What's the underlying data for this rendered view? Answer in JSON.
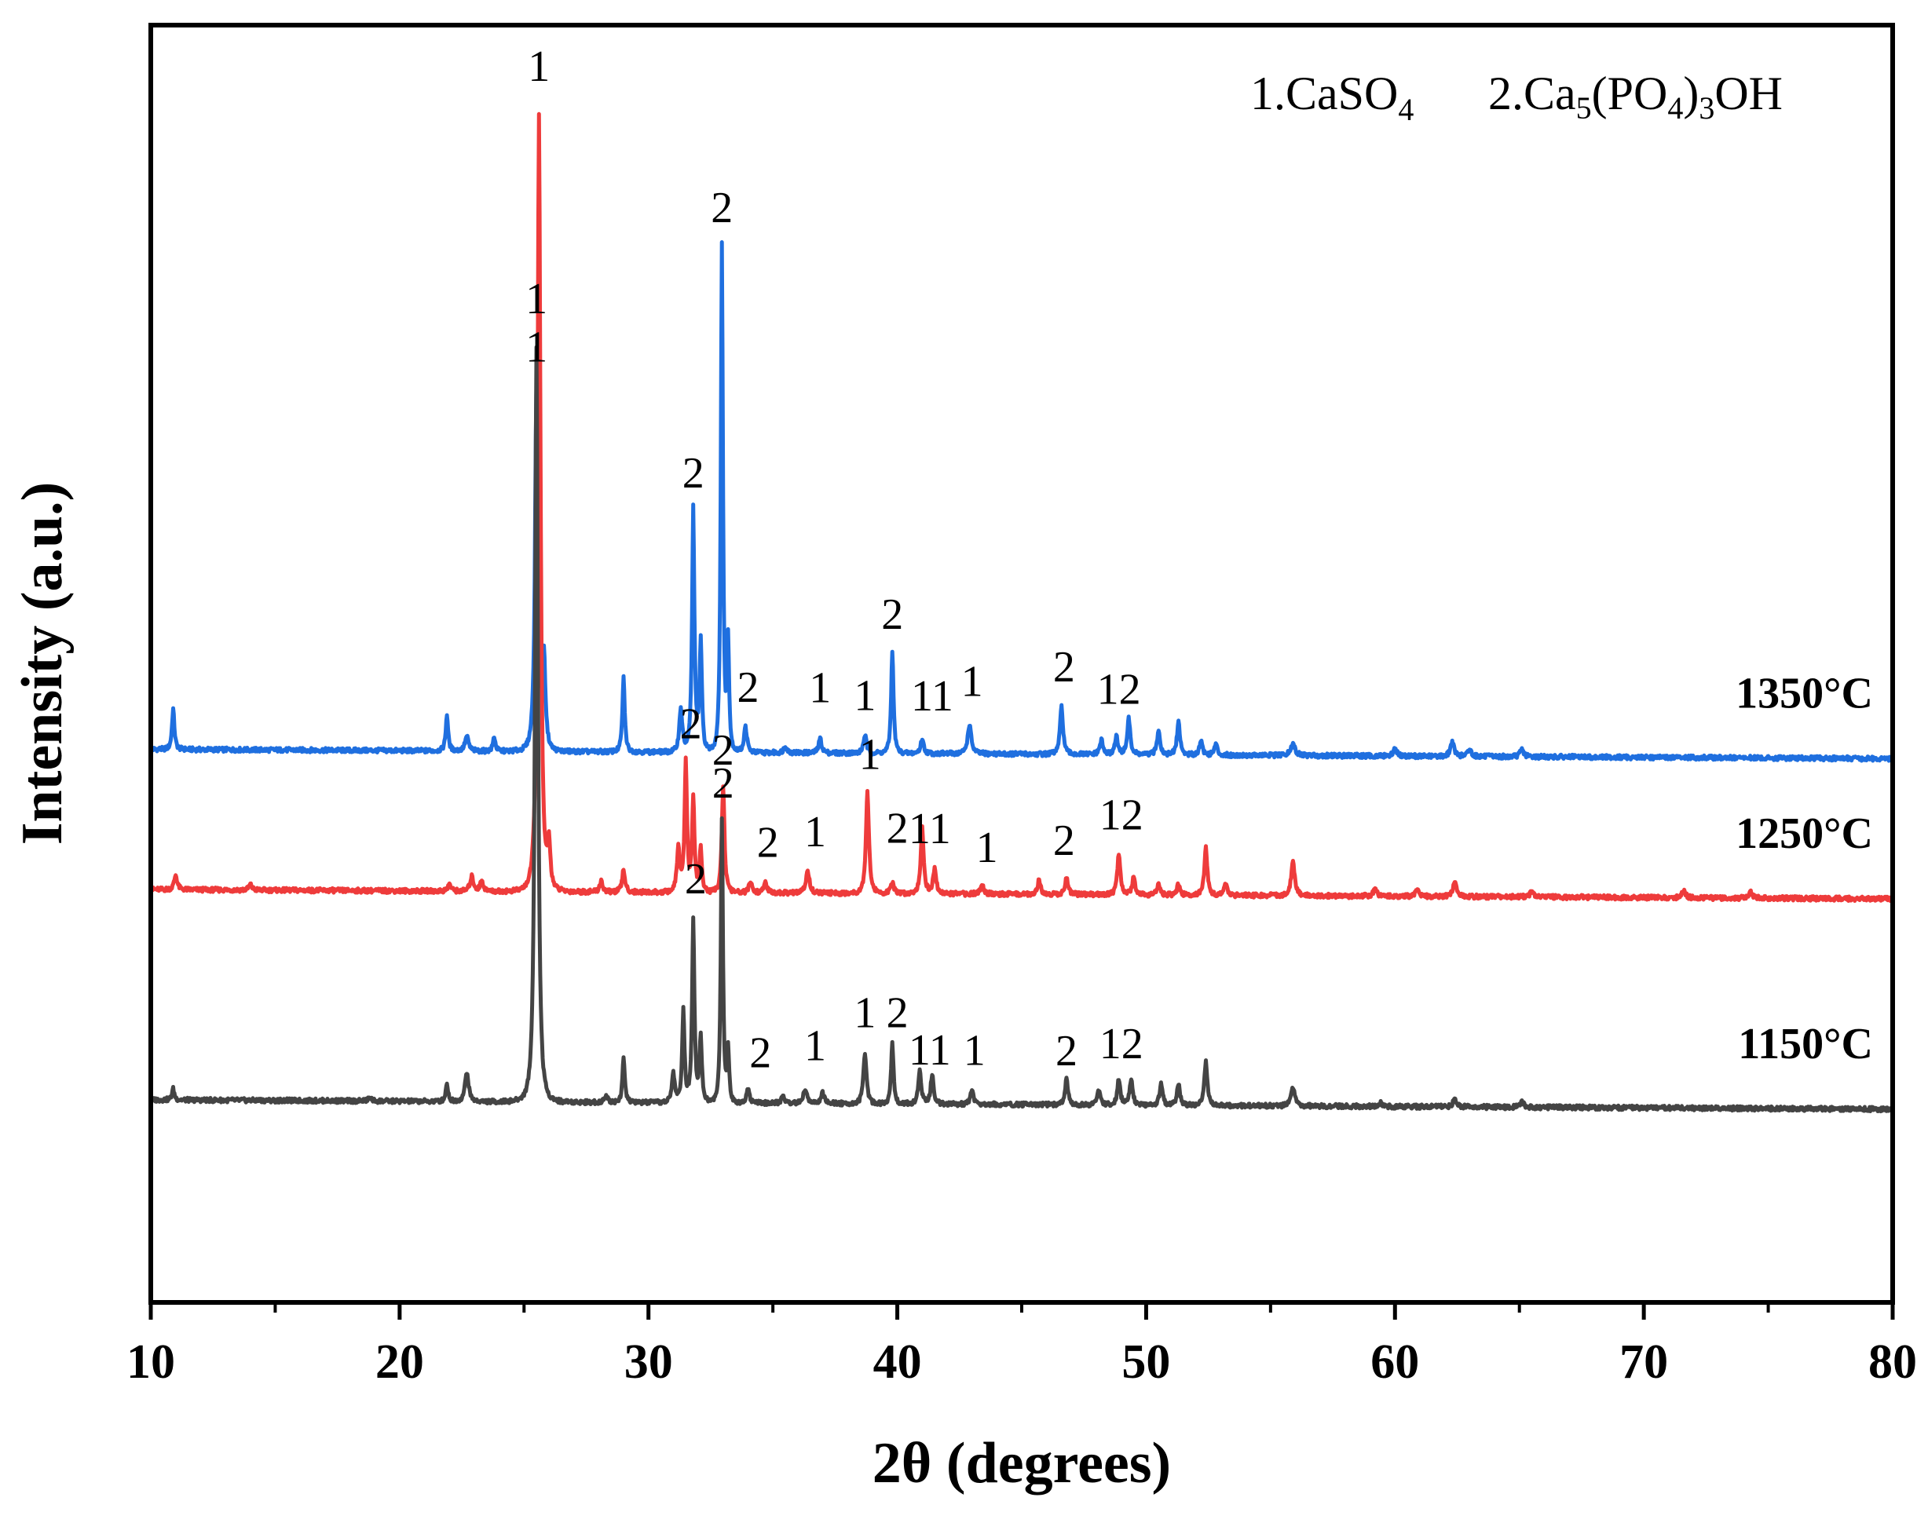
{
  "chart_data": {
    "type": "line",
    "title": "",
    "xlabel": "2θ (degrees)",
    "ylabel": "Intensity (a.u.)",
    "xlim": [
      10,
      80
    ],
    "x_ticks": [
      "10",
      "20",
      "30",
      "40",
      "50",
      "60",
      "70",
      "80"
    ],
    "grid": false,
    "y_ticks_shown": false,
    "legend": {
      "placement": "top-right",
      "entries": [
        {
          "prefix": "1.CaSO",
          "sub": "4"
        },
        {
          "prefix": "2.Ca",
          "parts": [
            {
              "t": "5",
              "sub": true
            },
            {
              "t": "(PO",
              "sub": false
            },
            {
              "t": "4",
              "sub": true
            },
            {
              "t": ")",
              "sub": false
            },
            {
              "t": "3",
              "sub": true
            },
            {
              "t": "OH",
              "sub": false
            }
          ]
        }
      ]
    },
    "series": [
      {
        "name": "1350°C",
        "color": "#1f6fdf",
        "baseline": 0.38,
        "peaks": [
          {
            "x": 10.9,
            "h": 0.11,
            "w": 0.08
          },
          {
            "x": 21.9,
            "h": 0.1,
            "w": 0.08
          },
          {
            "x": 22.7,
            "h": 0.04,
            "w": 0.12
          },
          {
            "x": 23.8,
            "h": 0.04,
            "w": 0.08
          },
          {
            "x": 25.5,
            "h": 0.98,
            "w": 0.1
          },
          {
            "x": 25.8,
            "h": 0.25,
            "w": 0.1
          },
          {
            "x": 29.0,
            "h": 0.2,
            "w": 0.08
          },
          {
            "x": 31.3,
            "h": 0.12,
            "w": 0.1
          },
          {
            "x": 31.8,
            "h": 0.66,
            "w": 0.08
          },
          {
            "x": 32.1,
            "h": 0.3,
            "w": 0.08
          },
          {
            "x": 32.95,
            "h": 1.38,
            "w": 0.07
          },
          {
            "x": 33.2,
            "h": 0.3,
            "w": 0.07
          },
          {
            "x": 33.9,
            "h": 0.07,
            "w": 0.1
          },
          {
            "x": 35.5,
            "h": 0.02,
            "w": 0.1
          },
          {
            "x": 36.9,
            "h": 0.04,
            "w": 0.1
          },
          {
            "x": 38.7,
            "h": 0.05,
            "w": 0.1
          },
          {
            "x": 39.8,
            "h": 0.28,
            "w": 0.08
          },
          {
            "x": 41.0,
            "h": 0.04,
            "w": 0.1
          },
          {
            "x": 42.9,
            "h": 0.08,
            "w": 0.12
          },
          {
            "x": 46.6,
            "h": 0.13,
            "w": 0.1
          },
          {
            "x": 48.2,
            "h": 0.04,
            "w": 0.1
          },
          {
            "x": 48.8,
            "h": 0.05,
            "w": 0.1
          },
          {
            "x": 49.3,
            "h": 0.1,
            "w": 0.1
          },
          {
            "x": 50.5,
            "h": 0.07,
            "w": 0.1
          },
          {
            "x": 51.3,
            "h": 0.09,
            "w": 0.1
          },
          {
            "x": 52.2,
            "h": 0.04,
            "w": 0.1
          },
          {
            "x": 52.8,
            "h": 0.03,
            "w": 0.1
          },
          {
            "x": 55.9,
            "h": 0.03,
            "w": 0.15
          },
          {
            "x": 60.0,
            "h": 0.02,
            "w": 0.12
          },
          {
            "x": 62.3,
            "h": 0.04,
            "w": 0.12
          },
          {
            "x": 63.0,
            "h": 0.02,
            "w": 0.12
          },
          {
            "x": 65.1,
            "h": 0.02,
            "w": 0.12
          }
        ]
      },
      {
        "name": "1250°C",
        "color": "#ee3b3b",
        "baseline": 0.0,
        "peaks": [
          {
            "x": 11.0,
            "h": 0.04,
            "w": 0.1
          },
          {
            "x": 14.0,
            "h": 0.015,
            "w": 0.1
          },
          {
            "x": 22.0,
            "h": 0.02,
            "w": 0.1
          },
          {
            "x": 22.9,
            "h": 0.04,
            "w": 0.12
          },
          {
            "x": 23.3,
            "h": 0.03,
            "w": 0.1
          },
          {
            "x": 25.6,
            "h": 2.1,
            "w": 0.1
          },
          {
            "x": 26.0,
            "h": 0.12,
            "w": 0.1
          },
          {
            "x": 28.1,
            "h": 0.03,
            "w": 0.1
          },
          {
            "x": 29.0,
            "h": 0.06,
            "w": 0.1
          },
          {
            "x": 31.2,
            "h": 0.12,
            "w": 0.1
          },
          {
            "x": 31.5,
            "h": 0.36,
            "w": 0.08
          },
          {
            "x": 31.8,
            "h": 0.26,
            "w": 0.08
          },
          {
            "x": 32.1,
            "h": 0.12,
            "w": 0.08
          },
          {
            "x": 33.0,
            "h": 0.29,
            "w": 0.09
          },
          {
            "x": 34.1,
            "h": 0.03,
            "w": 0.1
          },
          {
            "x": 34.7,
            "h": 0.03,
            "w": 0.1
          },
          {
            "x": 36.4,
            "h": 0.06,
            "w": 0.12
          },
          {
            "x": 38.8,
            "h": 0.28,
            "w": 0.1
          },
          {
            "x": 39.8,
            "h": 0.03,
            "w": 0.1
          },
          {
            "x": 41.0,
            "h": 0.18,
            "w": 0.1
          },
          {
            "x": 41.5,
            "h": 0.07,
            "w": 0.1
          },
          {
            "x": 43.4,
            "h": 0.03,
            "w": 0.1
          },
          {
            "x": 45.7,
            "h": 0.04,
            "w": 0.1
          },
          {
            "x": 46.8,
            "h": 0.05,
            "w": 0.1
          },
          {
            "x": 48.9,
            "h": 0.11,
            "w": 0.1
          },
          {
            "x": 49.5,
            "h": 0.05,
            "w": 0.1
          },
          {
            "x": 50.5,
            "h": 0.03,
            "w": 0.1
          },
          {
            "x": 51.3,
            "h": 0.03,
            "w": 0.1
          },
          {
            "x": 52.4,
            "h": 0.13,
            "w": 0.1
          },
          {
            "x": 53.2,
            "h": 0.03,
            "w": 0.1
          },
          {
            "x": 55.9,
            "h": 0.09,
            "w": 0.12
          },
          {
            "x": 59.2,
            "h": 0.02,
            "w": 0.12
          },
          {
            "x": 60.9,
            "h": 0.02,
            "w": 0.12
          },
          {
            "x": 62.4,
            "h": 0.04,
            "w": 0.12
          },
          {
            "x": 65.5,
            "h": 0.015,
            "w": 0.12
          },
          {
            "x": 71.6,
            "h": 0.02,
            "w": 0.12
          },
          {
            "x": 74.3,
            "h": 0.015,
            "w": 0.12
          }
        ]
      },
      {
        "name": "1150°C",
        "color": "#444444",
        "baseline": -0.57,
        "peaks": [
          {
            "x": 10.9,
            "h": 0.03,
            "w": 0.08
          },
          {
            "x": 18.8,
            "h": 0.01,
            "w": 0.1
          },
          {
            "x": 21.9,
            "h": 0.05,
            "w": 0.08
          },
          {
            "x": 22.7,
            "h": 0.08,
            "w": 0.12
          },
          {
            "x": 25.5,
            "h": 2.05,
            "w": 0.1
          },
          {
            "x": 28.3,
            "h": 0.02,
            "w": 0.1
          },
          {
            "x": 29.0,
            "h": 0.12,
            "w": 0.08
          },
          {
            "x": 31.0,
            "h": 0.08,
            "w": 0.1
          },
          {
            "x": 31.4,
            "h": 0.25,
            "w": 0.08
          },
          {
            "x": 31.8,
            "h": 0.5,
            "w": 0.08
          },
          {
            "x": 32.1,
            "h": 0.18,
            "w": 0.08
          },
          {
            "x": 32.95,
            "h": 0.77,
            "w": 0.07
          },
          {
            "x": 33.2,
            "h": 0.15,
            "w": 0.07
          },
          {
            "x": 34.0,
            "h": 0.04,
            "w": 0.1
          },
          {
            "x": 35.4,
            "h": 0.02,
            "w": 0.1
          },
          {
            "x": 36.3,
            "h": 0.04,
            "w": 0.12
          },
          {
            "x": 37.0,
            "h": 0.03,
            "w": 0.1
          },
          {
            "x": 38.7,
            "h": 0.14,
            "w": 0.1
          },
          {
            "x": 39.8,
            "h": 0.17,
            "w": 0.08
          },
          {
            "x": 40.9,
            "h": 0.09,
            "w": 0.1
          },
          {
            "x": 41.4,
            "h": 0.08,
            "w": 0.1
          },
          {
            "x": 43.0,
            "h": 0.04,
            "w": 0.1
          },
          {
            "x": 46.8,
            "h": 0.07,
            "w": 0.1
          },
          {
            "x": 48.1,
            "h": 0.04,
            "w": 0.1
          },
          {
            "x": 48.9,
            "h": 0.07,
            "w": 0.1
          },
          {
            "x": 49.4,
            "h": 0.07,
            "w": 0.1
          },
          {
            "x": 50.6,
            "h": 0.06,
            "w": 0.1
          },
          {
            "x": 51.3,
            "h": 0.06,
            "w": 0.1
          },
          {
            "x": 52.4,
            "h": 0.12,
            "w": 0.1
          },
          {
            "x": 55.9,
            "h": 0.05,
            "w": 0.12
          },
          {
            "x": 59.4,
            "h": 0.01,
            "w": 0.12
          },
          {
            "x": 62.4,
            "h": 0.02,
            "w": 0.12
          },
          {
            "x": 65.1,
            "h": 0.015,
            "w": 0.12
          }
        ]
      }
    ],
    "peak_labels": [
      {
        "series": "1350°C",
        "x": 25.5,
        "text": "1",
        "y": 1.04
      },
      {
        "series": "1350°C",
        "x": 31.8,
        "text": "2",
        "y": 0.7
      },
      {
        "series": "1350°C",
        "x": 32.95,
        "text": "2",
        "y": 1.42
      },
      {
        "series": "1350°C",
        "x": 34.0,
        "text": "2",
        "y": 0.12
      },
      {
        "series": "1350°C",
        "x": 36.9,
        "text": "1",
        "y": 0.12
      },
      {
        "series": "1350°C",
        "x": 38.7,
        "text": "1",
        "y": 0.1
      },
      {
        "series": "1350°C",
        "x": 39.8,
        "text": "2",
        "y": 0.32
      },
      {
        "series": "1350°C",
        "x": 41.4,
        "text": "11",
        "y": 0.1
      },
      {
        "series": "1350°C",
        "x": 43.0,
        "text": "1",
        "y": 0.14
      },
      {
        "series": "1350°C",
        "x": 46.7,
        "text": "2",
        "y": 0.18
      },
      {
        "series": "1350°C",
        "x": 48.9,
        "text": "12",
        "y": 0.12
      },
      {
        "series": "1250°C",
        "x": 25.6,
        "text": "1",
        "y": 2.18
      },
      {
        "series": "1250°C",
        "x": 31.7,
        "text": "2",
        "y": 0.4
      },
      {
        "series": "1250°C",
        "x": 33.0,
        "text": "2",
        "y": 0.33
      },
      {
        "series": "1250°C",
        "x": 34.8,
        "text": "2",
        "y": 0.08
      },
      {
        "series": "1250°C",
        "x": 36.7,
        "text": "1",
        "y": 0.11
      },
      {
        "series": "1250°C",
        "x": 38.9,
        "text": "1",
        "y": 0.32
      },
      {
        "series": "1250°C",
        "x": 40.0,
        "text": "2",
        "y": 0.12
      },
      {
        "series": "1250°C",
        "x": 41.3,
        "text": "11",
        "y": 0.12
      },
      {
        "series": "1250°C",
        "x": 43.6,
        "text": "1",
        "y": 0.07
      },
      {
        "series": "1250°C",
        "x": 46.7,
        "text": "2",
        "y": 0.09
      },
      {
        "series": "1250°C",
        "x": 49.0,
        "text": "12",
        "y": 0.16
      },
      {
        "series": "1150°C",
        "x": 25.5,
        "text": "1",
        "y": 2.12
      },
      {
        "series": "1150°C",
        "x": 31.9,
        "text": "2",
        "y": 0.55
      },
      {
        "series": "1150°C",
        "x": 33.0,
        "text": "2",
        "y": 0.81
      },
      {
        "series": "1150°C",
        "x": 34.5,
        "text": "2",
        "y": 0.08
      },
      {
        "series": "1150°C",
        "x": 36.7,
        "text": "1",
        "y": 0.1
      },
      {
        "series": "1150°C",
        "x": 38.7,
        "text": "1",
        "y": 0.19
      },
      {
        "series": "1150°C",
        "x": 40.0,
        "text": "2",
        "y": 0.19
      },
      {
        "series": "1150°C",
        "x": 41.3,
        "text": "11",
        "y": 0.09
      },
      {
        "series": "1150°C",
        "x": 43.1,
        "text": "1",
        "y": 0.09
      },
      {
        "series": "1150°C",
        "x": 46.8,
        "text": "2",
        "y": 0.09
      },
      {
        "series": "1150°C",
        "x": 49.0,
        "text": "12",
        "y": 0.11
      }
    ]
  }
}
